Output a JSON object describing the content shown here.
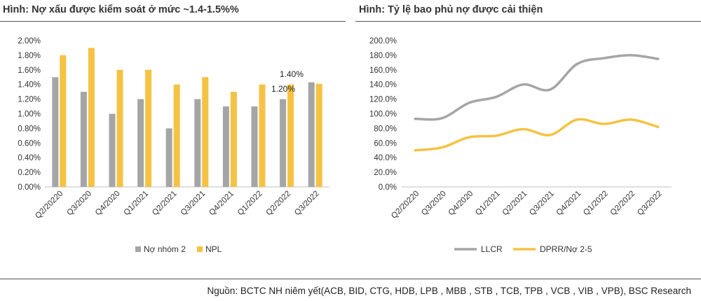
{
  "titles": {
    "left": "Hình: Nợ xấu được kiểm soát ở mức ~1.4-1.5%%",
    "right": "Hình: Tỷ lệ bao phủ nợ được cải thiện"
  },
  "source": "Nguồn: BCTC NH niêm yết(ACB, BID, CTG, HDB, LPB , MBB , STB , TCB, TPB , VCB , VIB , VPB), BSC Research",
  "colors": {
    "gray": "#a5a5a5",
    "yellow": "#f5c242"
  },
  "chart_data": [
    {
      "type": "bar",
      "categories": [
        "Q2/20220",
        "Q3/2020",
        "Q4/2020",
        "Q1/2021",
        "Q2/2021",
        "Q3/2021",
        "Q4/2021",
        "Q1/2022",
        "Q2/2022",
        "Q3/2022"
      ],
      "series": [
        {
          "name": "Nợ nhóm 2",
          "values": [
            1.5,
            1.3,
            1.0,
            1.2,
            0.8,
            1.2,
            1.1,
            1.1,
            1.2,
            1.43
          ]
        },
        {
          "name": "NPL",
          "values": [
            1.8,
            1.9,
            1.6,
            1.6,
            1.4,
            1.5,
            1.3,
            1.4,
            1.4,
            1.41
          ]
        }
      ],
      "ylim": [
        0,
        2.0
      ],
      "yticks": [
        "0.00%",
        "0.20%",
        "0.40%",
        "0.60%",
        "0.80%",
        "1.00%",
        "1.20%",
        "1.40%",
        "1.60%",
        "1.80%",
        "2.00%"
      ],
      "annotations": [
        "1.40%",
        "1.20%"
      ],
      "legend": "bottom"
    },
    {
      "type": "line",
      "categories": [
        "Q2/20220",
        "Q3/2020",
        "Q4/2020",
        "Q1/2021",
        "Q2/2021",
        "Q3/2021",
        "Q4/2021",
        "Q1/2022",
        "Q2/2022",
        "Q3/2022"
      ],
      "series": [
        {
          "name": "LLCR",
          "values": [
            93,
            94,
            115,
            123,
            140,
            133,
            168,
            176,
            180,
            175
          ]
        },
        {
          "name": "DPRR/Nợ 2-5",
          "values": [
            50,
            54,
            68,
            70,
            79,
            71,
            92,
            86,
            92,
            82
          ]
        }
      ],
      "ylim": [
        0,
        200
      ],
      "yticks": [
        "0.0%",
        "20.0%",
        "40.0%",
        "60.0%",
        "80.0%",
        "100.0%",
        "120.0%",
        "140.0%",
        "160.0%",
        "180.0%",
        "200.0%"
      ],
      "legend": "bottom"
    }
  ]
}
